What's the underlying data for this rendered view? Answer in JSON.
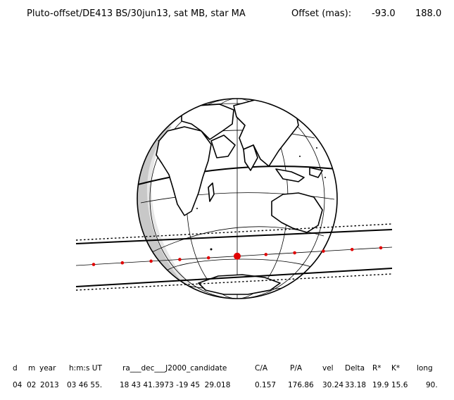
{
  "header": {
    "title": "Pluto-offset/DE413 BS/30jun13, sat MB, star MA",
    "offset_label": "Offset (mas):",
    "offset_values": [
      "-93.0",
      "188.0"
    ]
  },
  "table": {
    "headers": [
      "d",
      "m",
      "year",
      "h:m:s UT",
      "ra___dec___J2000_candidate",
      "C/A",
      "P/A",
      "vel",
      "Delta",
      "R*",
      "K*",
      "long"
    ],
    "values": [
      "04",
      "02",
      "2013",
      "03 46 55.",
      "18 43 41.3973 -19 45  29.018",
      "0.157",
      "176.86",
      "30.24",
      "33.18",
      "19.9",
      "15.6",
      "90."
    ]
  },
  "track": {
    "marker_color": "#e00000",
    "marker_count": 11,
    "closest_marker_index": 5
  },
  "colors": {
    "ink": "#000000",
    "night_shade": "#c8c8c8",
    "twilight_shade": "#e6e6e6"
  }
}
